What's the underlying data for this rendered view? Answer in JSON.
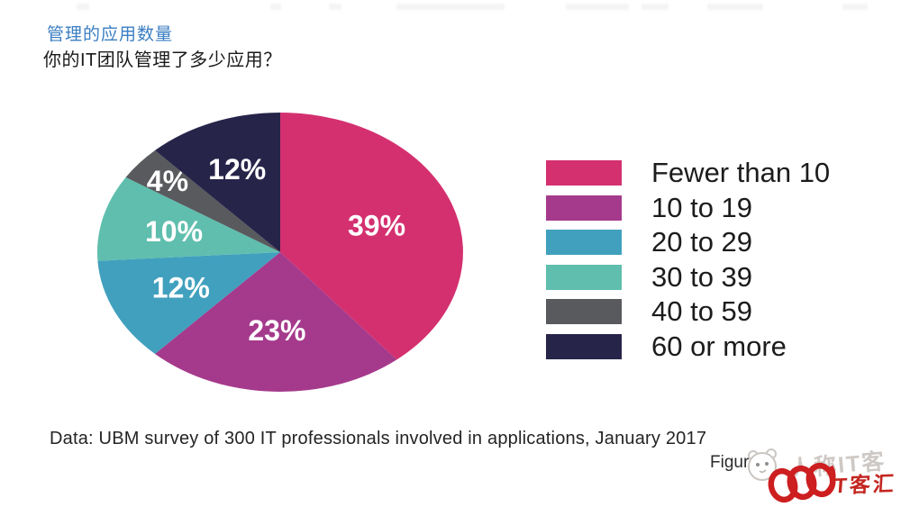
{
  "header": {
    "title": "管理的应用数量",
    "subtitle": "你的IT团队管理了多少应用？"
  },
  "chart_data": {
    "type": "pie",
    "title": "管理的应用数量",
    "question": "你的IT团队管理了多少应用？",
    "start_angle_deg": 0,
    "direction": "clockwise",
    "legend_position": "right",
    "data_label_color": "#FFFFFF",
    "slices": [
      {
        "label": "Fewer than 10",
        "value": 39,
        "data_label": "39%",
        "color": "#D43070"
      },
      {
        "label": "10 to 19",
        "value": 23,
        "data_label": "23%",
        "color": "#A53A8C"
      },
      {
        "label": "20 to 29",
        "value": 12,
        "data_label": "12%",
        "color": "#41A0BE"
      },
      {
        "label": "30 to 39",
        "value": 10,
        "data_label": "10%",
        "color": "#5FBEAD"
      },
      {
        "label": "40 to 59",
        "value": 4,
        "data_label": "4%",
        "color": "#595A5E"
      },
      {
        "label": "60 or more",
        "value": 12,
        "data_label": "12%",
        "color": "#27244A"
      }
    ]
  },
  "footer": {
    "source": "Data: UBM survey of 300 IT professionals involved in applications, January 2017",
    "figure_label": "Figur"
  },
  "watermark": {
    "ghost_text": "人称IT客",
    "brand_text": "T客汇"
  },
  "colors": {
    "title_blue": "#3A7EC2",
    "brand_red": "#C42620"
  }
}
